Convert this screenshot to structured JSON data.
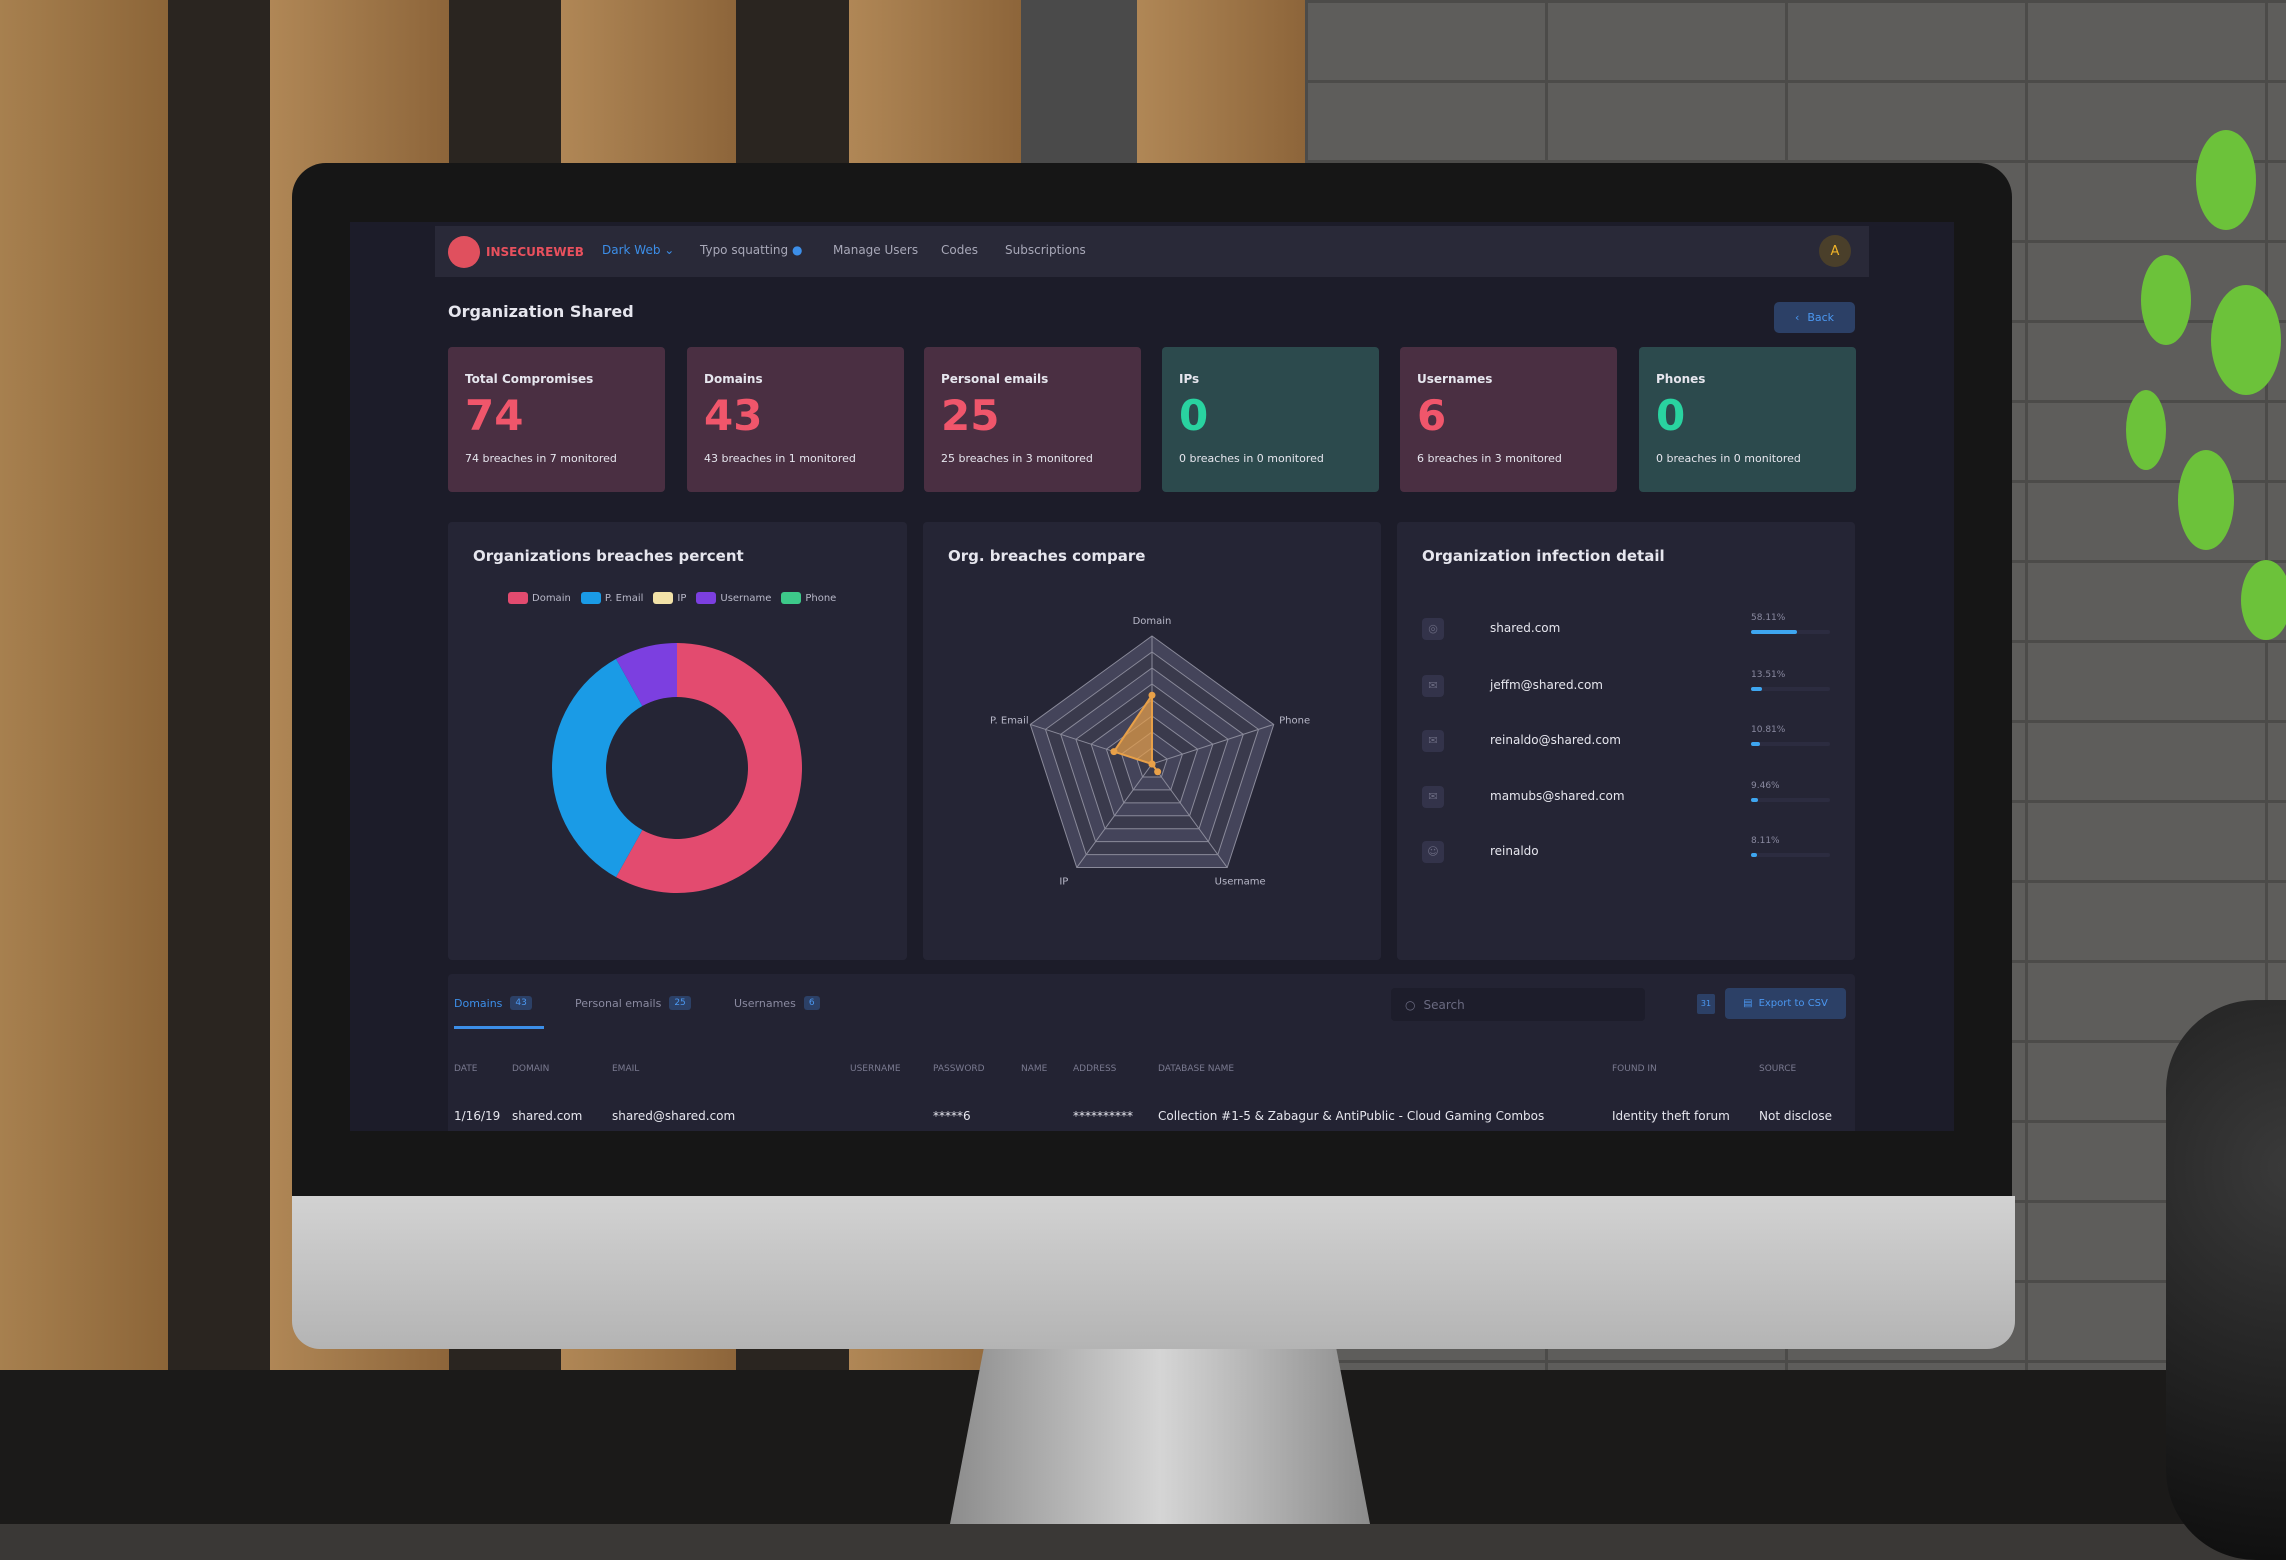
{
  "nav": {
    "logo": "INSECUREWEB",
    "items": [
      {
        "label": "Dark Web",
        "active": true
      },
      {
        "label": "Typo squatting"
      },
      {
        "label": "Manage Users"
      },
      {
        "label": "Codes"
      },
      {
        "label": "Subscriptions"
      }
    ],
    "avatar": "A"
  },
  "page": {
    "title": "Organization Shared",
    "back": "Back"
  },
  "cards": [
    {
      "label": "Total Compromises",
      "value": "74",
      "sub": "74 breaches in 7 monitored",
      "tone": "red"
    },
    {
      "label": "Domains",
      "value": "43",
      "sub": "43 breaches in 1 monitored",
      "tone": "red"
    },
    {
      "label": "Personal emails",
      "value": "25",
      "sub": "25 breaches in 3 monitored",
      "tone": "red"
    },
    {
      "label": "IPs",
      "value": "0",
      "sub": "0 breaches in 0 monitored",
      "tone": "teal"
    },
    {
      "label": "Usernames",
      "value": "6",
      "sub": "6 breaches in 3 monitored",
      "tone": "red"
    },
    {
      "label": "Phones",
      "value": "0",
      "sub": "0 breaches in 0 monitored",
      "tone": "teal"
    }
  ],
  "chart_data": [
    {
      "type": "pie",
      "title": "Organizations breaches percent",
      "categories": [
        "Domain",
        "P. Email",
        "IP",
        "Username",
        "Phone"
      ],
      "values": [
        43,
        25,
        0,
        6,
        0
      ],
      "colors": [
        "#e34b6f",
        "#1a9be6",
        "#f2e2a8",
        "#7c3fe0",
        "#3dc98a"
      ],
      "legend": "top",
      "donut": true
    },
    {
      "type": "radar",
      "title": "Org. breaches compare",
      "categories": [
        "Domain",
        "Phone",
        "Username",
        "IP",
        "P. Email"
      ],
      "values": [
        43,
        0,
        6,
        0,
        25
      ],
      "color": "#e8a048",
      "rmax": 80,
      "grid": true
    }
  ],
  "infection": {
    "title": "Organization infection detail",
    "rows": [
      {
        "name": "shared.com",
        "pct": "58.11%",
        "value": 58.11
      },
      {
        "name": "jeffm@shared.com",
        "pct": "13.51%",
        "value": 13.51
      },
      {
        "name": "reinaldo@shared.com",
        "pct": "10.81%",
        "value": 10.81
      },
      {
        "name": "mamubs@shared.com",
        "pct": "9.46%",
        "value": 9.46
      },
      {
        "name": "reinaldo",
        "pct": "8.11%",
        "value": 8.11
      }
    ]
  },
  "table": {
    "tabs": [
      {
        "label": "Domains",
        "count": "43",
        "active": true
      },
      {
        "label": "Personal emails",
        "count": "25"
      },
      {
        "label": "Usernames",
        "count": "6"
      }
    ],
    "search_placeholder": "Search",
    "calendar": "31",
    "export": "Export to CSV",
    "columns": [
      "Date",
      "Domain",
      "Email",
      "Username",
      "Password",
      "Name",
      "Address",
      "Database name",
      "Found in",
      "Source"
    ],
    "rows": [
      [
        "1/16/19",
        "shared.com",
        "shared@shared.com",
        "",
        "*****6",
        "",
        "**********",
        "Collection #1-5 & Zabagur & AntiPublic - Cloud Gaming Combos",
        "Identity theft forum",
        "Not disclose"
      ]
    ]
  }
}
